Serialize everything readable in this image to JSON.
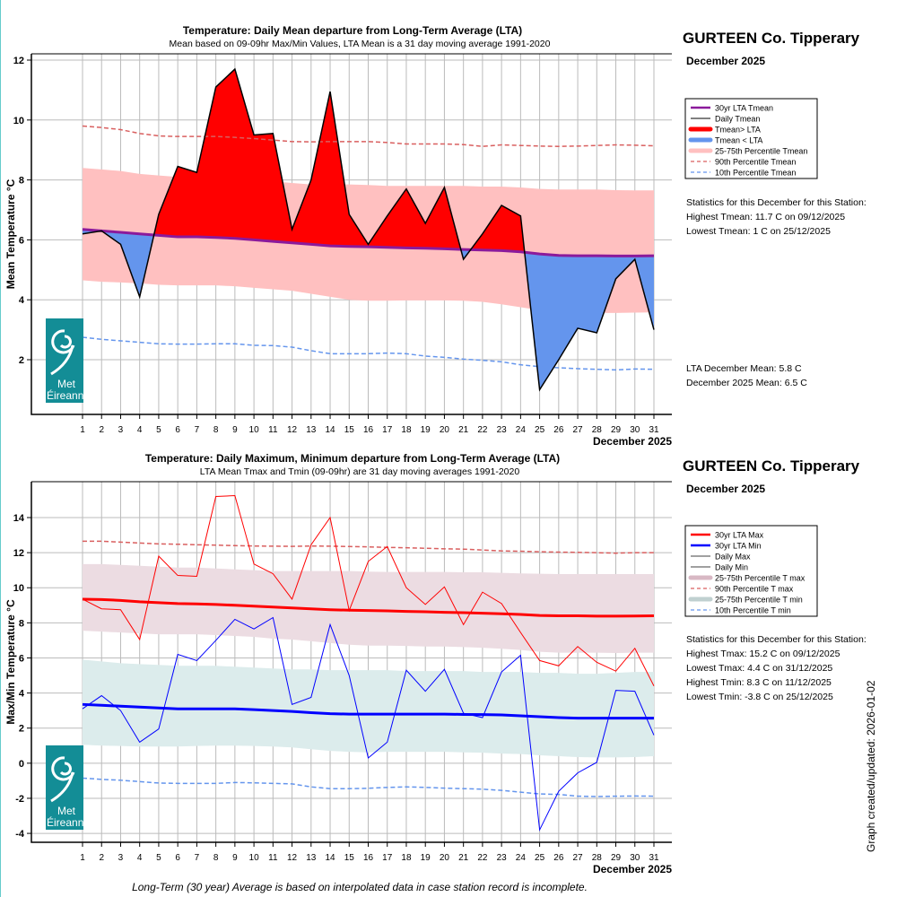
{
  "footer": "Long-Term (30 year) Average is based on interpolated data in case station record is incomplete.",
  "updated": "Graph created/updated:  2026-01-02",
  "logo": "Met Éireann",
  "chart_data": [
    {
      "type": "area",
      "title": "Temperature: Daily Mean departure from Long-Term Average (LTA)",
      "subtitle": "Mean based on 09-09hr Max/Min Values, LTA Mean is a 31 day moving average 1991-2020",
      "ylabel": "Mean Temperature °C",
      "xlabel": "December 2025",
      "ylim": [
        0.4,
        12.2
      ],
      "yticks": [
        2,
        4,
        6,
        8,
        10,
        12
      ],
      "x": [
        1,
        2,
        3,
        4,
        5,
        6,
        7,
        8,
        9,
        10,
        11,
        12,
        13,
        14,
        15,
        16,
        17,
        18,
        19,
        20,
        21,
        22,
        23,
        24,
        25,
        26,
        27,
        28,
        29,
        30,
        31
      ],
      "station": "GURTEEN Co. Tipperary",
      "period": "December 2025",
      "legend": [
        "30yr LTA Tmean",
        "Daily Tmean",
        "Tmean> LTA",
        "Tmean < LTA",
        "25-75th Percentile Tmean",
        "90th Percentile Tmean",
        "10th Percentile Tmean"
      ],
      "stats": {
        "heading": "Statistics for this December for this Station:",
        "lines": [
          "Highest Tmean: 11.7 C on 09/12/2025",
          "Lowest Tmean: 1 C on 25/12/2025"
        ]
      },
      "summary": [
        "LTA December Mean: 5.8 C",
        "December 2025 Mean: 6.5 C"
      ],
      "colors": {
        "above": "#ff0000",
        "below": "#6495ed",
        "lta": "#8b1a9b",
        "band": "#ffc0c0",
        "p90": "#d95f5f",
        "p10": "#6495ed"
      },
      "series": [
        {
          "name": "Daily Tmean",
          "values": [
            6.2,
            6.3,
            5.85,
            4.1,
            6.85,
            8.45,
            8.25,
            11.1,
            11.7,
            9.5,
            9.55,
            6.35,
            8.0,
            10.95,
            6.85,
            5.85,
            6.8,
            7.7,
            6.55,
            7.75,
            5.35,
            6.2,
            7.15,
            6.8,
            1.0,
            2.0,
            3.05,
            2.9,
            4.7,
            5.35,
            3.0
          ]
        },
        {
          "name": "30yr LTA Tmean",
          "values": [
            6.35,
            6.3,
            6.25,
            6.2,
            6.15,
            6.1,
            6.1,
            6.08,
            6.05,
            6.0,
            5.95,
            5.9,
            5.85,
            5.8,
            5.78,
            5.77,
            5.75,
            5.73,
            5.72,
            5.7,
            5.68,
            5.66,
            5.64,
            5.6,
            5.53,
            5.48,
            5.47,
            5.47,
            5.46,
            5.46,
            5.47
          ]
        },
        {
          "name": "75th Percentile Tmean",
          "values": [
            8.4,
            8.35,
            8.3,
            8.2,
            8.15,
            8.1,
            8.05,
            8.05,
            8.05,
            8.0,
            7.95,
            7.9,
            7.85,
            7.85,
            7.85,
            7.83,
            7.8,
            7.8,
            7.8,
            7.8,
            7.8,
            7.78,
            7.78,
            7.75,
            7.7,
            7.68,
            7.68,
            7.68,
            7.66,
            7.65,
            7.65
          ]
        },
        {
          "name": "25th Percentile Tmean",
          "values": [
            4.65,
            4.6,
            4.58,
            4.55,
            4.5,
            4.48,
            4.48,
            4.48,
            4.45,
            4.4,
            4.35,
            4.3,
            4.2,
            4.1,
            4.0,
            3.97,
            3.97,
            3.98,
            3.98,
            3.98,
            3.97,
            3.93,
            3.85,
            3.75,
            3.65,
            3.6,
            3.58,
            3.56,
            3.56,
            3.57,
            3.58
          ]
        },
        {
          "name": "90th Percentile Tmean",
          "values": [
            9.8,
            9.75,
            9.68,
            9.55,
            9.47,
            9.45,
            9.45,
            9.45,
            9.42,
            9.38,
            9.33,
            9.28,
            9.27,
            9.28,
            9.28,
            9.28,
            9.25,
            9.2,
            9.2,
            9.2,
            9.18,
            9.12,
            9.17,
            9.15,
            9.13,
            9.12,
            9.13,
            9.15,
            9.17,
            9.16,
            9.14
          ]
        },
        {
          "name": "10th Percentile Tmean",
          "values": [
            2.75,
            2.68,
            2.63,
            2.58,
            2.53,
            2.52,
            2.52,
            2.53,
            2.53,
            2.48,
            2.47,
            2.42,
            2.3,
            2.2,
            2.2,
            2.2,
            2.22,
            2.2,
            2.12,
            2.08,
            2.02,
            1.98,
            1.93,
            1.83,
            1.77,
            1.73,
            1.7,
            1.68,
            1.66,
            1.69,
            1.68
          ]
        }
      ]
    },
    {
      "type": "line",
      "title": "Temperature: Daily Maximum, Minimum departure from Long-Term Average (LTA)",
      "subtitle": "LTA Mean Tmax and Tmin (09-09hr) are 31 day moving averages 1991-2020",
      "ylabel": "Max/Min Temperature °C",
      "xlabel": "December 2025",
      "ylim": [
        -4.5,
        16
      ],
      "yticks": [
        -4,
        -2,
        0,
        2,
        4,
        6,
        8,
        10,
        12,
        14
      ],
      "x": [
        1,
        2,
        3,
        4,
        5,
        6,
        7,
        8,
        9,
        10,
        11,
        12,
        13,
        14,
        15,
        16,
        17,
        18,
        19,
        20,
        21,
        22,
        23,
        24,
        25,
        26,
        27,
        28,
        29,
        30,
        31
      ],
      "station": "GURTEEN Co. Tipperary",
      "period": "December 2025",
      "legend": [
        "30yr LTA Max",
        "30yr LTA Min",
        "Daily Max",
        "Daily Min",
        "25-75th Percentile T max",
        "90th Percentile T max",
        "25-75th Percentile T min",
        "10th Percentile T min"
      ],
      "stats": {
        "heading": "Statistics for this December for this Station:",
        "lines": [
          "Highest Tmax: 15.2 C on 09/12/2025",
          "Lowest Tmax: 4.4 C on 31/12/2025",
          "Highest Tmin: 8.3 C on 11/12/2025",
          "Lowest Tmin: -3.8 C on 25/12/2025"
        ]
      },
      "colors": {
        "max": "#ff0000",
        "min": "#0000ff",
        "maxband": "#ecdce2",
        "minband": "#dcecec",
        "p90": "#d95f5f",
        "p10": "#6495ed"
      },
      "series": [
        {
          "name": "Daily Max",
          "values": [
            9.35,
            8.8,
            8.75,
            7.05,
            11.8,
            10.7,
            10.65,
            15.2,
            15.25,
            11.35,
            10.8,
            9.35,
            12.45,
            14.0,
            8.7,
            11.5,
            12.35,
            10.0,
            9.05,
            10.05,
            7.9,
            9.75,
            9.1,
            7.45,
            5.85,
            5.55,
            6.65,
            5.75,
            5.25,
            6.55,
            4.4
          ]
        },
        {
          "name": "Daily Min",
          "values": [
            3.1,
            3.85,
            3.0,
            1.2,
            1.95,
            6.2,
            5.85,
            7.0,
            8.2,
            7.65,
            8.3,
            3.35,
            3.75,
            7.9,
            5.0,
            0.3,
            1.2,
            5.3,
            4.1,
            5.35,
            2.85,
            2.6,
            5.2,
            6.15,
            -3.8,
            -1.6,
            -0.55,
            0.05,
            4.15,
            4.1,
            1.6
          ]
        },
        {
          "name": "30yr LTA Max",
          "values": [
            9.35,
            9.33,
            9.28,
            9.2,
            9.15,
            9.1,
            9.08,
            9.05,
            9.0,
            8.95,
            8.9,
            8.85,
            8.8,
            8.75,
            8.72,
            8.7,
            8.68,
            8.65,
            8.63,
            8.6,
            8.58,
            8.55,
            8.52,
            8.48,
            8.42,
            8.4,
            8.4,
            8.38,
            8.38,
            8.39,
            8.4
          ]
        },
        {
          "name": "30yr LTA Min",
          "values": [
            3.35,
            3.3,
            3.25,
            3.2,
            3.15,
            3.1,
            3.1,
            3.1,
            3.1,
            3.05,
            3.0,
            2.95,
            2.88,
            2.82,
            2.8,
            2.8,
            2.8,
            2.8,
            2.8,
            2.8,
            2.78,
            2.77,
            2.75,
            2.7,
            2.65,
            2.6,
            2.57,
            2.57,
            2.57,
            2.57,
            2.57
          ]
        },
        {
          "name": "75th Percentile T max",
          "values": [
            11.35,
            11.35,
            11.3,
            11.25,
            11.2,
            11.15,
            11.15,
            11.1,
            11.05,
            11.0,
            10.95,
            10.95,
            10.95,
            10.95,
            10.95,
            10.92,
            10.9,
            10.9,
            10.9,
            10.9,
            10.88,
            10.88,
            10.85,
            10.82,
            10.8,
            10.78,
            10.78,
            10.78,
            10.78,
            10.78,
            10.78
          ]
        },
        {
          "name": "25th Percentile T max",
          "values": [
            7.55,
            7.5,
            7.45,
            7.4,
            7.35,
            7.35,
            7.35,
            7.3,
            7.25,
            7.2,
            7.1,
            7.05,
            6.95,
            6.85,
            6.75,
            6.7,
            6.7,
            6.68,
            6.65,
            6.65,
            6.62,
            6.58,
            6.52,
            6.45,
            6.35,
            6.3,
            6.3,
            6.3,
            6.28,
            6.3,
            6.3
          ]
        },
        {
          "name": "75th Percentile T min",
          "values": [
            5.9,
            5.8,
            5.7,
            5.65,
            5.6,
            5.55,
            5.55,
            5.55,
            5.5,
            5.45,
            5.4,
            5.35,
            5.35,
            5.3,
            5.3,
            5.3,
            5.3,
            5.25,
            5.25,
            5.25,
            5.25,
            5.2,
            5.2,
            5.2,
            5.15,
            5.15,
            5.1,
            5.1,
            5.15,
            5.2,
            5.2
          ]
        },
        {
          "name": "25th Percentile T min",
          "values": [
            1.05,
            1.0,
            0.98,
            0.95,
            0.95,
            0.95,
            0.98,
            1.0,
            1.0,
            0.98,
            0.95,
            0.9,
            0.8,
            0.7,
            0.65,
            0.62,
            0.65,
            0.65,
            0.65,
            0.65,
            0.62,
            0.6,
            0.55,
            0.52,
            0.45,
            0.4,
            0.35,
            0.33,
            0.33,
            0.35,
            0.4
          ]
        },
        {
          "name": "90th Percentile T max",
          "values": [
            12.65,
            12.65,
            12.6,
            12.55,
            12.5,
            12.48,
            12.45,
            12.43,
            12.4,
            12.38,
            12.37,
            12.36,
            12.38,
            12.37,
            12.35,
            12.33,
            12.3,
            12.28,
            12.25,
            12.22,
            12.2,
            12.15,
            12.1,
            12.08,
            12.05,
            12.03,
            12.02,
            12.0,
            11.97,
            12.0,
            12.0
          ]
        },
        {
          "name": "10th Percentile T min",
          "values": [
            -0.85,
            -0.92,
            -0.97,
            -1.05,
            -1.13,
            -1.15,
            -1.15,
            -1.15,
            -1.1,
            -1.12,
            -1.15,
            -1.18,
            -1.35,
            -1.45,
            -1.45,
            -1.43,
            -1.38,
            -1.35,
            -1.38,
            -1.42,
            -1.45,
            -1.48,
            -1.55,
            -1.65,
            -1.75,
            -1.78,
            -1.88,
            -1.9,
            -1.88,
            -1.87,
            -1.88
          ]
        }
      ]
    }
  ]
}
